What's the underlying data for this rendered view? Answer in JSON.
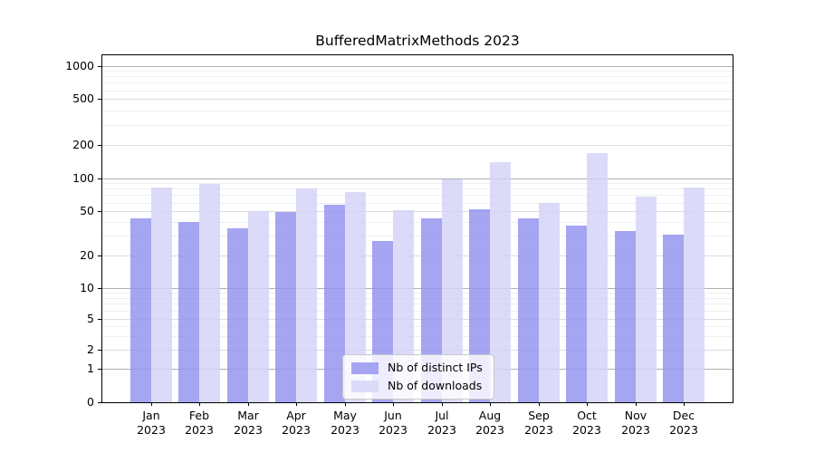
{
  "title": "BufferedMatrixMethods 2023",
  "chart_data": {
    "type": "bar",
    "title": "BufferedMatrixMethods 2023",
    "months": [
      "Jan",
      "Feb",
      "Mar",
      "Apr",
      "May",
      "Jun",
      "Jul",
      "Aug",
      "Sep",
      "Oct",
      "Nov",
      "Dec"
    ],
    "year": "2023",
    "series": [
      {
        "name": "Nb of distinct IPs",
        "color": "#a5a5f2",
        "values": [
          43,
          40,
          35,
          49,
          57,
          27,
          43,
          52,
          43,
          37,
          33,
          31
        ]
      },
      {
        "name": "Nb of downloads",
        "color": "#dbdbf9",
        "values": [
          82,
          88,
          50,
          80,
          74,
          51,
          98,
          140,
          60,
          170,
          68,
          82
        ]
      }
    ],
    "y_ticks": [
      0,
      1,
      2,
      5,
      10,
      20,
      50,
      100,
      200,
      500,
      1000
    ],
    "yscale": "symlog",
    "ylim": [
      0,
      1000
    ],
    "grid": true,
    "legend_position": "lower center",
    "axis_color": "#000000",
    "grid_color_decade": "#b0b0b0",
    "grid_color_minor": "#efefef",
    "background": "#ffffff"
  }
}
